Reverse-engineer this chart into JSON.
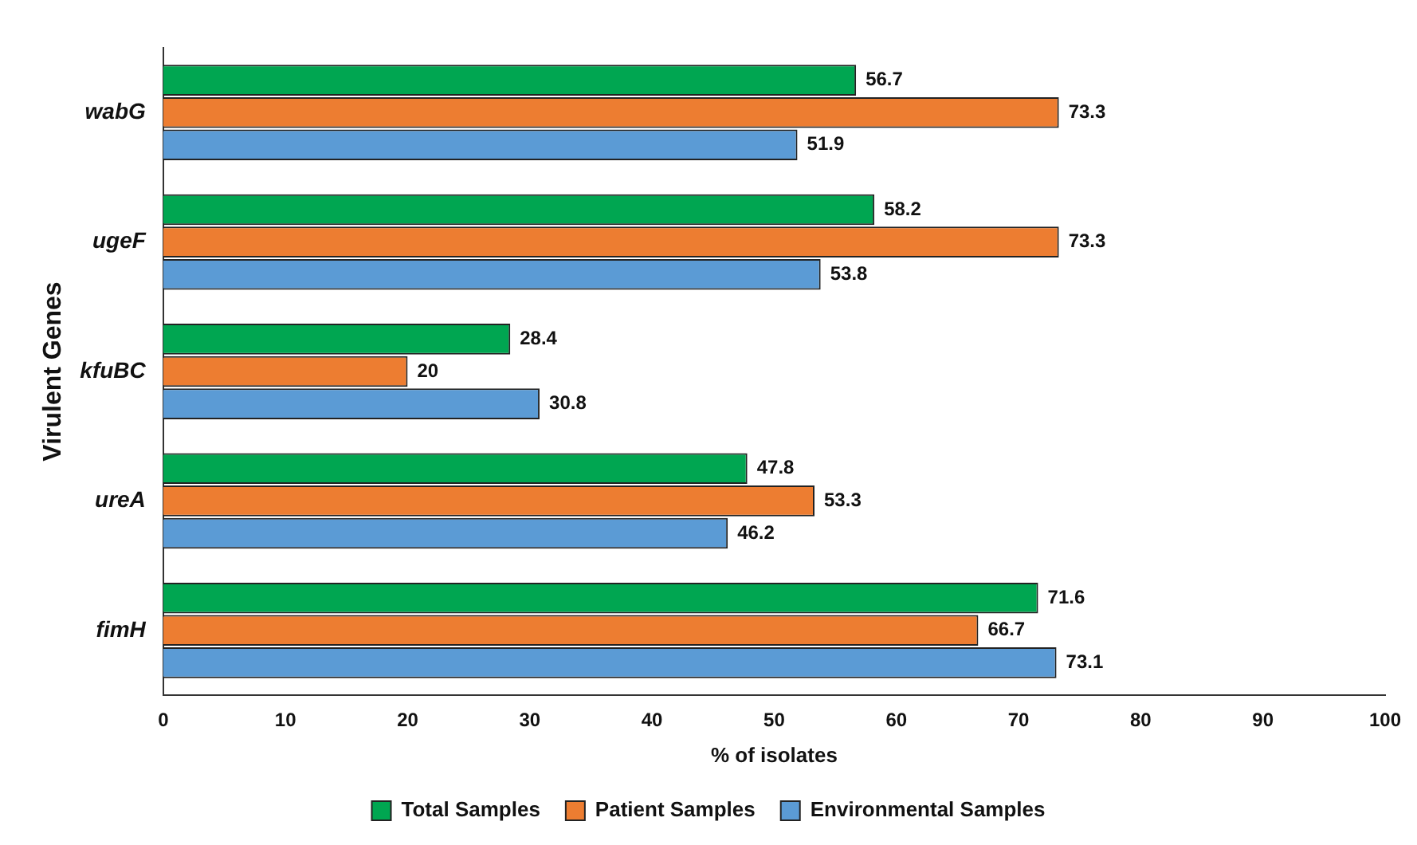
{
  "chart_data": {
    "type": "bar",
    "orientation": "horizontal",
    "xlabel": "% of isolates",
    "ylabel": "Virulent Genes",
    "categories": [
      "wabG",
      "ugeF",
      "kfuBC",
      "ureA",
      "fimH"
    ],
    "series": [
      {
        "name": "Total Samples",
        "color": "#00a651",
        "values": [
          56.7,
          58.2,
          28.4,
          47.8,
          71.6
        ]
      },
      {
        "name": "Patient Samples",
        "color": "#ed7d31",
        "values": [
          73.3,
          73.3,
          20,
          53.3,
          66.7
        ]
      },
      {
        "name": "Environmental Samples",
        "color": "#5b9bd5",
        "values": [
          51.9,
          53.8,
          30.8,
          46.2,
          73.1
        ]
      }
    ],
    "xlim": [
      0,
      100
    ],
    "xticks": [
      0,
      10,
      20,
      30,
      40,
      50,
      60,
      70,
      80,
      90,
      100
    ],
    "grid": false,
    "legend": "bottom",
    "data_labels": true
  }
}
